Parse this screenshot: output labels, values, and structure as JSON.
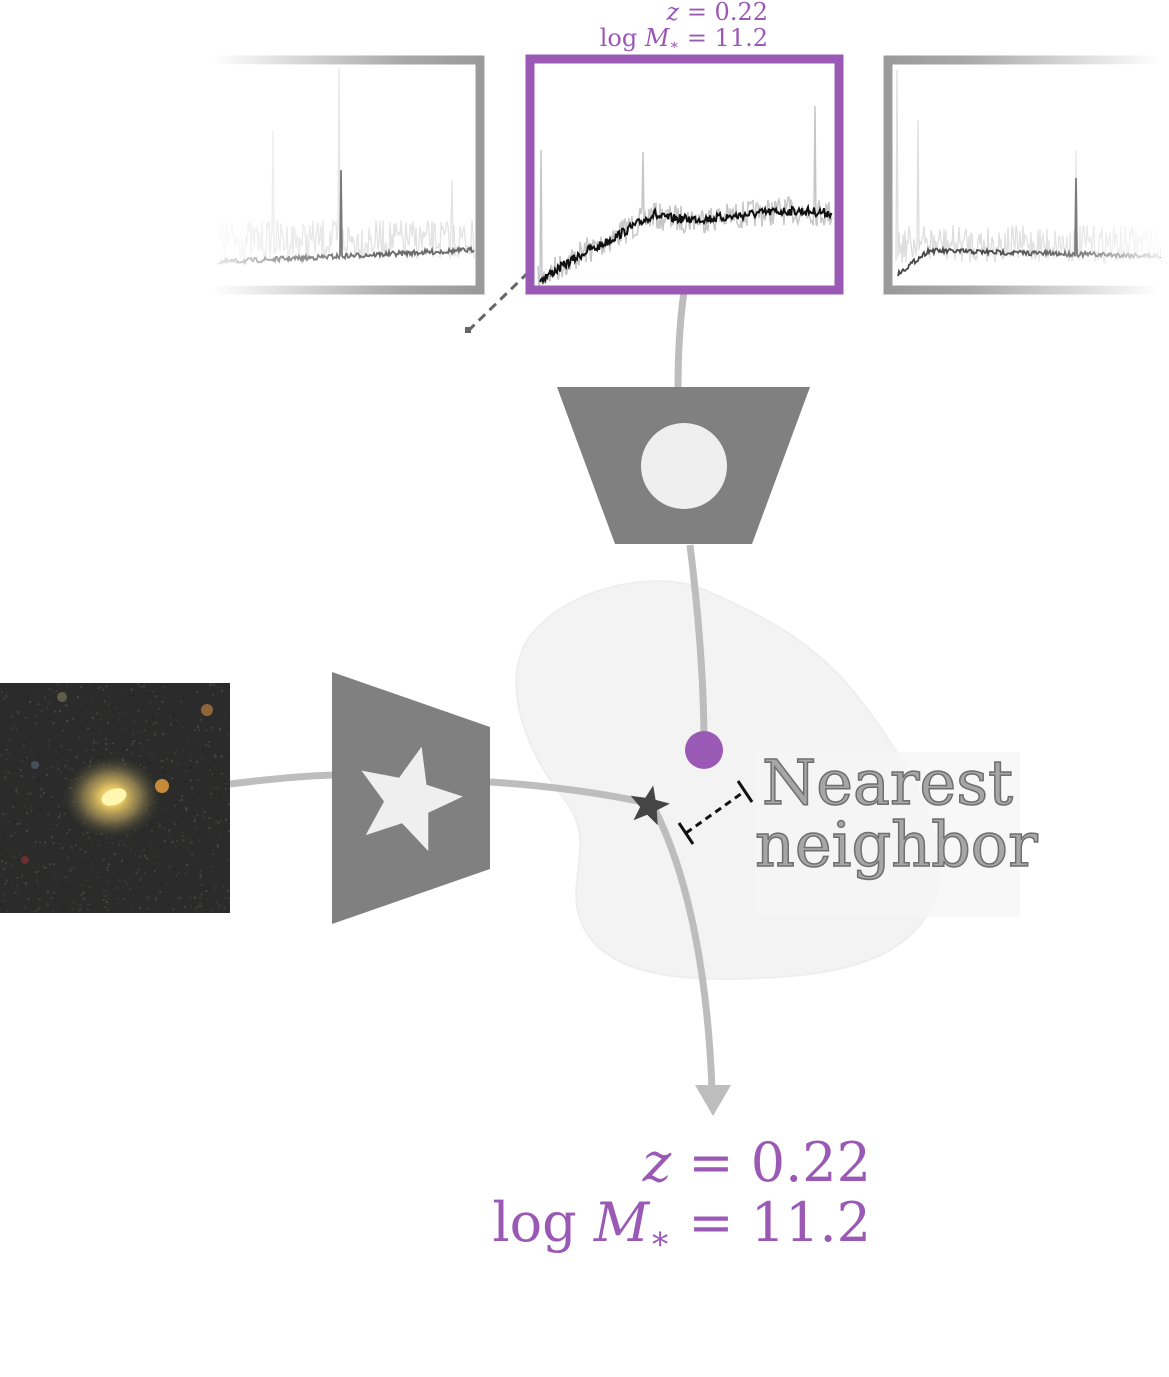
{
  "top_label": {
    "z_var": "z",
    "z_rest": " = 0.22",
    "m_log": "log ",
    "m_var": "M",
    "m_sub": "∗",
    "m_rest": " = 11.2"
  },
  "bottom_label": {
    "z_var": "z",
    "z_rest": " = 0.22",
    "m_log": "log ",
    "m_var": "M",
    "m_sub": "∗",
    "m_rest": " = 11.2"
  },
  "nearest_neighbor": {
    "line1": "Nearest",
    "line2": "neighbor"
  },
  "colors": {
    "accent": "#9b59b6",
    "encoder": "#808080",
    "connector": "#bdbdbd",
    "embedding_star": "#454545"
  },
  "icons": {
    "spectrum_encoder": "circle-icon",
    "image_encoder": "star-icon"
  }
}
